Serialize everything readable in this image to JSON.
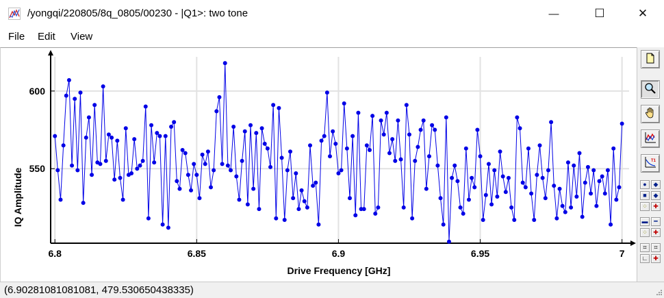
{
  "window": {
    "title": "/yongqi/220805/8q_0805/00230 - |Q1>: two tone",
    "icons": {
      "app": "chart-icon",
      "minimize": "minimize-icon",
      "maximize": "maximize-icon",
      "close": "close-icon"
    },
    "minimize_glyph": "—",
    "maximize_glyph": "☐",
    "close_glyph": "✕"
  },
  "menu": {
    "file": "File",
    "edit": "Edit",
    "view": "View"
  },
  "toolbar": {
    "icons": [
      "new-page-icon",
      "zoom-icon",
      "pan-hand-icon",
      "plot-style-icon",
      "plot-t1-icon"
    ],
    "small_icons": [
      "point-marker-icon",
      "diamond-marker-icon",
      "square-marker-icon",
      "arrow-marker-icon",
      "dash-icon",
      "dash-dot-icon",
      "dots-icon",
      "line-arrow-icon",
      "hash-icon",
      "hash-icon",
      "corner-icon",
      "corner-arrow-icon"
    ]
  },
  "status": {
    "coords": "(6.90281081081081, 479.530650438335)"
  },
  "chart_data": {
    "type": "line",
    "title": "",
    "xlabel": "Drive Frequency [GHz]",
    "ylabel": "IQ Amplitude",
    "xlim": [
      6.8,
      7.0
    ],
    "ylim": [
      502,
      622
    ],
    "xticks": [
      6.8,
      6.85,
      6.9,
      6.95,
      7.0
    ],
    "xtick_labels": [
      "6.8",
      "6.85",
      "6.9",
      "6.95",
      "7"
    ],
    "yticks": [
      550,
      600
    ],
    "ytick_labels": [
      "550",
      "600"
    ],
    "grid": true,
    "series_color": "#0000e6",
    "marker": "circle",
    "x": [
      6.8,
      6.801,
      6.802,
      6.803,
      6.804,
      6.805,
      6.806,
      6.807,
      6.808,
      6.809,
      6.81,
      6.811,
      6.812,
      6.813,
      6.814,
      6.815,
      6.816,
      6.817,
      6.818,
      6.819,
      6.82,
      6.821,
      6.822,
      6.823,
      6.824,
      6.825,
      6.826,
      6.827,
      6.828,
      6.829,
      6.83,
      6.831,
      6.832,
      6.833,
      6.834,
      6.835,
      6.836,
      6.837,
      6.838,
      6.839,
      6.84,
      6.841,
      6.842,
      6.843,
      6.844,
      6.845,
      6.846,
      6.847,
      6.848,
      6.849,
      6.85,
      6.851,
      6.852,
      6.853,
      6.854,
      6.855,
      6.856,
      6.857,
      6.858,
      6.859,
      6.86,
      6.861,
      6.862,
      6.863,
      6.864,
      6.865,
      6.866,
      6.867,
      6.868,
      6.869,
      6.87,
      6.871,
      6.872,
      6.873,
      6.874,
      6.875,
      6.876,
      6.877,
      6.878,
      6.879,
      6.88,
      6.881,
      6.882,
      6.883,
      6.884,
      6.885,
      6.886,
      6.887,
      6.888,
      6.889,
      6.89,
      6.891,
      6.892,
      6.893,
      6.894,
      6.895,
      6.896,
      6.897,
      6.898,
      6.899,
      6.9,
      6.901,
      6.902,
      6.903,
      6.904,
      6.905,
      6.906,
      6.907,
      6.908,
      6.909,
      6.91,
      6.911,
      6.912,
      6.913,
      6.914,
      6.915,
      6.916,
      6.917,
      6.918,
      6.919,
      6.92,
      6.921,
      6.922,
      6.923,
      6.924,
      6.925,
      6.926,
      6.927,
      6.928,
      6.929,
      6.93,
      6.931,
      6.932,
      6.933,
      6.934,
      6.935,
      6.936,
      6.937,
      6.938,
      6.939,
      6.94,
      6.941,
      6.942,
      6.943,
      6.944,
      6.945,
      6.946,
      6.947,
      6.948,
      6.949,
      6.95,
      6.951,
      6.952,
      6.953,
      6.954,
      6.955,
      6.956,
      6.957,
      6.958,
      6.959,
      6.96,
      6.961,
      6.962,
      6.963,
      6.964,
      6.965,
      6.966,
      6.967,
      6.968,
      6.969,
      6.97,
      6.971,
      6.972,
      6.973,
      6.974,
      6.975,
      6.976,
      6.977,
      6.978,
      6.979,
      6.98,
      6.981,
      6.982,
      6.983,
      6.984,
      6.985,
      6.986,
      6.987,
      6.988,
      6.989,
      6.99,
      6.991,
      6.992,
      6.993,
      6.994,
      6.995,
      6.996,
      6.997,
      6.998,
      6.999,
      7.0
    ],
    "y": [
      571,
      549,
      530,
      565,
      597,
      607,
      552,
      595,
      549,
      599,
      528,
      570,
      583,
      546,
      591,
      554,
      553,
      603,
      555,
      572,
      570,
      543,
      568,
      544,
      530,
      576,
      546,
      547,
      569,
      550,
      552,
      555,
      590,
      518,
      578,
      554,
      573,
      571,
      514,
      571,
      512,
      577,
      580,
      542,
      537,
      562,
      560,
      546,
      536,
      553,
      546,
      531,
      559,
      553,
      561,
      538,
      549,
      587,
      596,
      553,
      618,
      552,
      549,
      577,
      545,
      530,
      555,
      574,
      527,
      578,
      537,
      573,
      524,
      576,
      566,
      563,
      551,
      591,
      518,
      589,
      557,
      517,
      549,
      561,
      531,
      547,
      524,
      536,
      529,
      525,
      565,
      539,
      541,
      514,
      568,
      571,
      599,
      558,
      574,
      566,
      547,
      549,
      592,
      563,
      531,
      571,
      520,
      586,
      524,
      524,
      565,
      562,
      584,
      521,
      525,
      581,
      572,
      586,
      560,
      569,
      555,
      581,
      556,
      525,
      591,
      572,
      518,
      555,
      564,
      575,
      581,
      537,
      558,
      578,
      575,
      552,
      531,
      514,
      583,
      503,
      544,
      552,
      542,
      525,
      521,
      563,
      530,
      544,
      538,
      575,
      558,
      517,
      533,
      553,
      527,
      549,
      532,
      561,
      545,
      535,
      544,
      525,
      517,
      583,
      576,
      541,
      538,
      563,
      534,
      517,
      546,
      565,
      544,
      531,
      549,
      580,
      539,
      518,
      537,
      526,
      522,
      554,
      525,
      552,
      532,
      560,
      519,
      541,
      551,
      534,
      549,
      526,
      542,
      545,
      534,
      549,
      514,
      563,
      530,
      538,
      579
    ]
  }
}
